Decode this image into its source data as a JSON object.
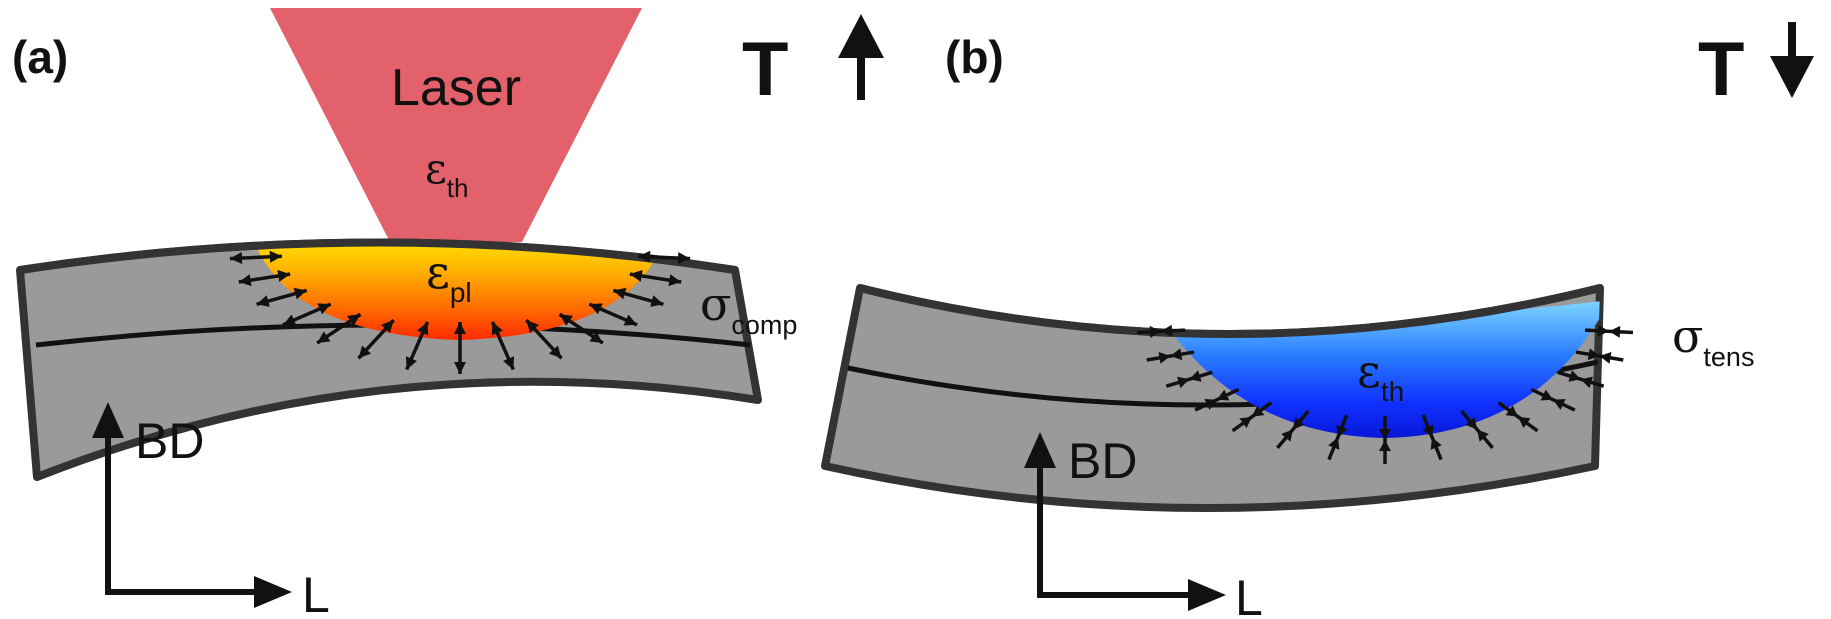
{
  "panels": [
    {
      "id": "a",
      "label": "(a)",
      "temperature_symbol": "T",
      "temperature_direction": "up",
      "laser_label": "Laser",
      "laser_strain": {
        "symbol": "ε",
        "subscript": "th"
      },
      "zone_strain": {
        "symbol": "ε",
        "subscript": "pl"
      },
      "stress_label": {
        "symbol": "σ",
        "subscript": "comp"
      },
      "zone_gradient": [
        "#ffe800",
        "#ffb000",
        "#ff6a00",
        "#ff2a00"
      ],
      "arrow_type": "outward",
      "build_direction": "BD",
      "length_direction": "L"
    },
    {
      "id": "b",
      "label": "(b)",
      "temperature_symbol": "T",
      "temperature_direction": "down",
      "zone_strain": {
        "symbol": "ε",
        "subscript": "th"
      },
      "stress_label": {
        "symbol": "σ",
        "subscript": "tens"
      },
      "zone_gradient": [
        "#7fd6ff",
        "#2a7dff",
        "#1030ff",
        "#0818d8"
      ],
      "arrow_type": "inward",
      "build_direction": "BD",
      "length_direction": "L"
    }
  ],
  "colors": {
    "plate": "#9a9a9a",
    "plate_outline": "#333333",
    "laser": "#e2616a",
    "arrow": "#111111"
  }
}
